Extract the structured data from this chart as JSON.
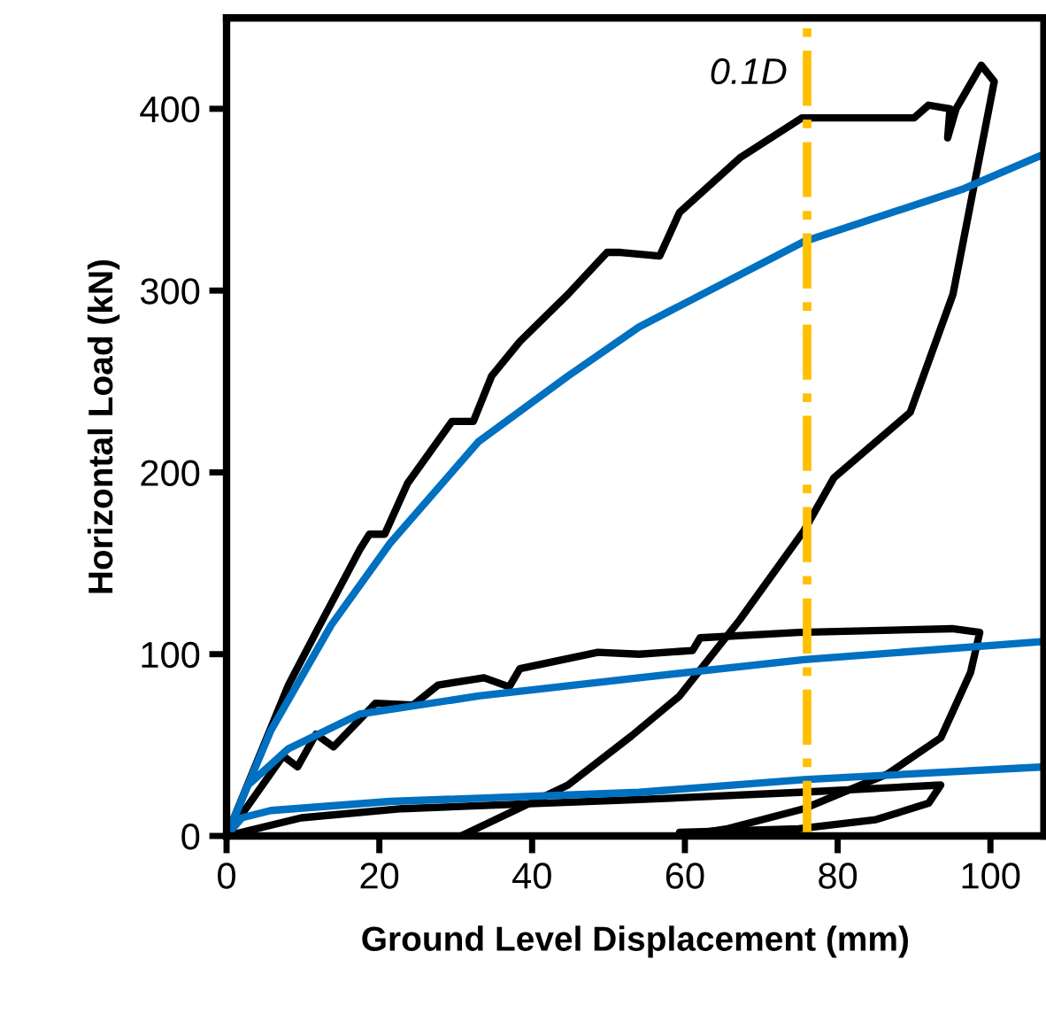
{
  "chart_data": {
    "type": "line",
    "xlabel": "Ground Level Displacement (mm)",
    "ylabel": "Horizontal Load (kN)",
    "xlim": [
      0,
      107
    ],
    "xticks": [
      0,
      20,
      40,
      60,
      80,
      100
    ],
    "ylim": [
      0,
      450
    ],
    "yticks": [
      0,
      100,
      200,
      300,
      400
    ],
    "grid": false,
    "legend": false,
    "marker": "none",
    "line_style": "solid",
    "series": [
      {
        "color": "#000000",
        "x": [
          0,
          8.1,
          11.7,
          17.5,
          18.7,
          20.7,
          23.7,
          29.5,
          32.3,
          34.7,
          38.4,
          44.7,
          49.8,
          51.6,
          56.7,
          59.3,
          67.2,
          75.3,
          90,
          91.9,
          94.7,
          94.4,
          95.5,
          98.8,
          100.5,
          98.1,
          95.1,
          89.5,
          79.5,
          75.6,
          67.2,
          59.3,
          53,
          44.7,
          30.7
        ],
        "values": [
          0,
          83,
          112,
          158,
          166,
          166,
          194,
          228,
          228,
          253,
          272,
          298,
          321,
          321,
          319,
          343,
          373,
          395,
          395,
          402,
          400,
          384,
          400,
          424,
          415,
          363,
          298,
          233,
          197,
          168,
          119,
          77,
          55,
          28,
          0
        ]
      },
      {
        "color": "#000000",
        "x": [
          0,
          7.4,
          9.3,
          11.7,
          14,
          19.5,
          24.4,
          27.7,
          33.7,
          37,
          38.4,
          48.6,
          54,
          61,
          62,
          74.9,
          95,
          98.6,
          97.4,
          93.5,
          86.5,
          75.6,
          65.6,
          59.3
        ],
        "values": [
          0,
          44,
          38,
          56,
          49,
          73,
          72,
          83,
          87,
          82,
          92,
          101,
          100,
          102,
          109,
          112,
          114,
          112,
          90,
          54,
          34,
          15,
          4,
          0
        ]
      },
      {
        "color": "#000000",
        "x": [
          0,
          9.8,
          23,
          54,
          75,
          93.5,
          91.9,
          85,
          74.9,
          59.3
        ],
        "values": [
          0,
          10,
          15,
          20,
          24,
          28,
          18,
          9,
          4,
          2
        ]
      },
      {
        "color": "#0070c0",
        "x": [
          0,
          5.8,
          13.7,
          21.4,
          33,
          44.7,
          54,
          75.6,
          96.5,
          107
        ],
        "values": [
          0,
          58,
          116,
          161,
          217,
          253,
          280,
          327,
          356,
          375
        ]
      },
      {
        "color": "#0070c0",
        "x": [
          0,
          2.8,
          8.1,
          17.4,
          33,
          54,
          75.6,
          107
        ],
        "values": [
          0,
          28,
          48,
          67,
          77,
          87,
          97,
          107
        ]
      },
      {
        "color": "#0070c0",
        "x": [
          0,
          2,
          5.8,
          21.4,
          54,
          75.6,
          107
        ],
        "values": [
          0,
          10,
          14,
          19,
          24,
          31,
          38
        ]
      }
    ],
    "ref_lines": [
      {
        "axis": "x",
        "value": 76,
        "label": "0.1D",
        "color": "#ffc000",
        "line_style": "dashdot"
      }
    ]
  }
}
